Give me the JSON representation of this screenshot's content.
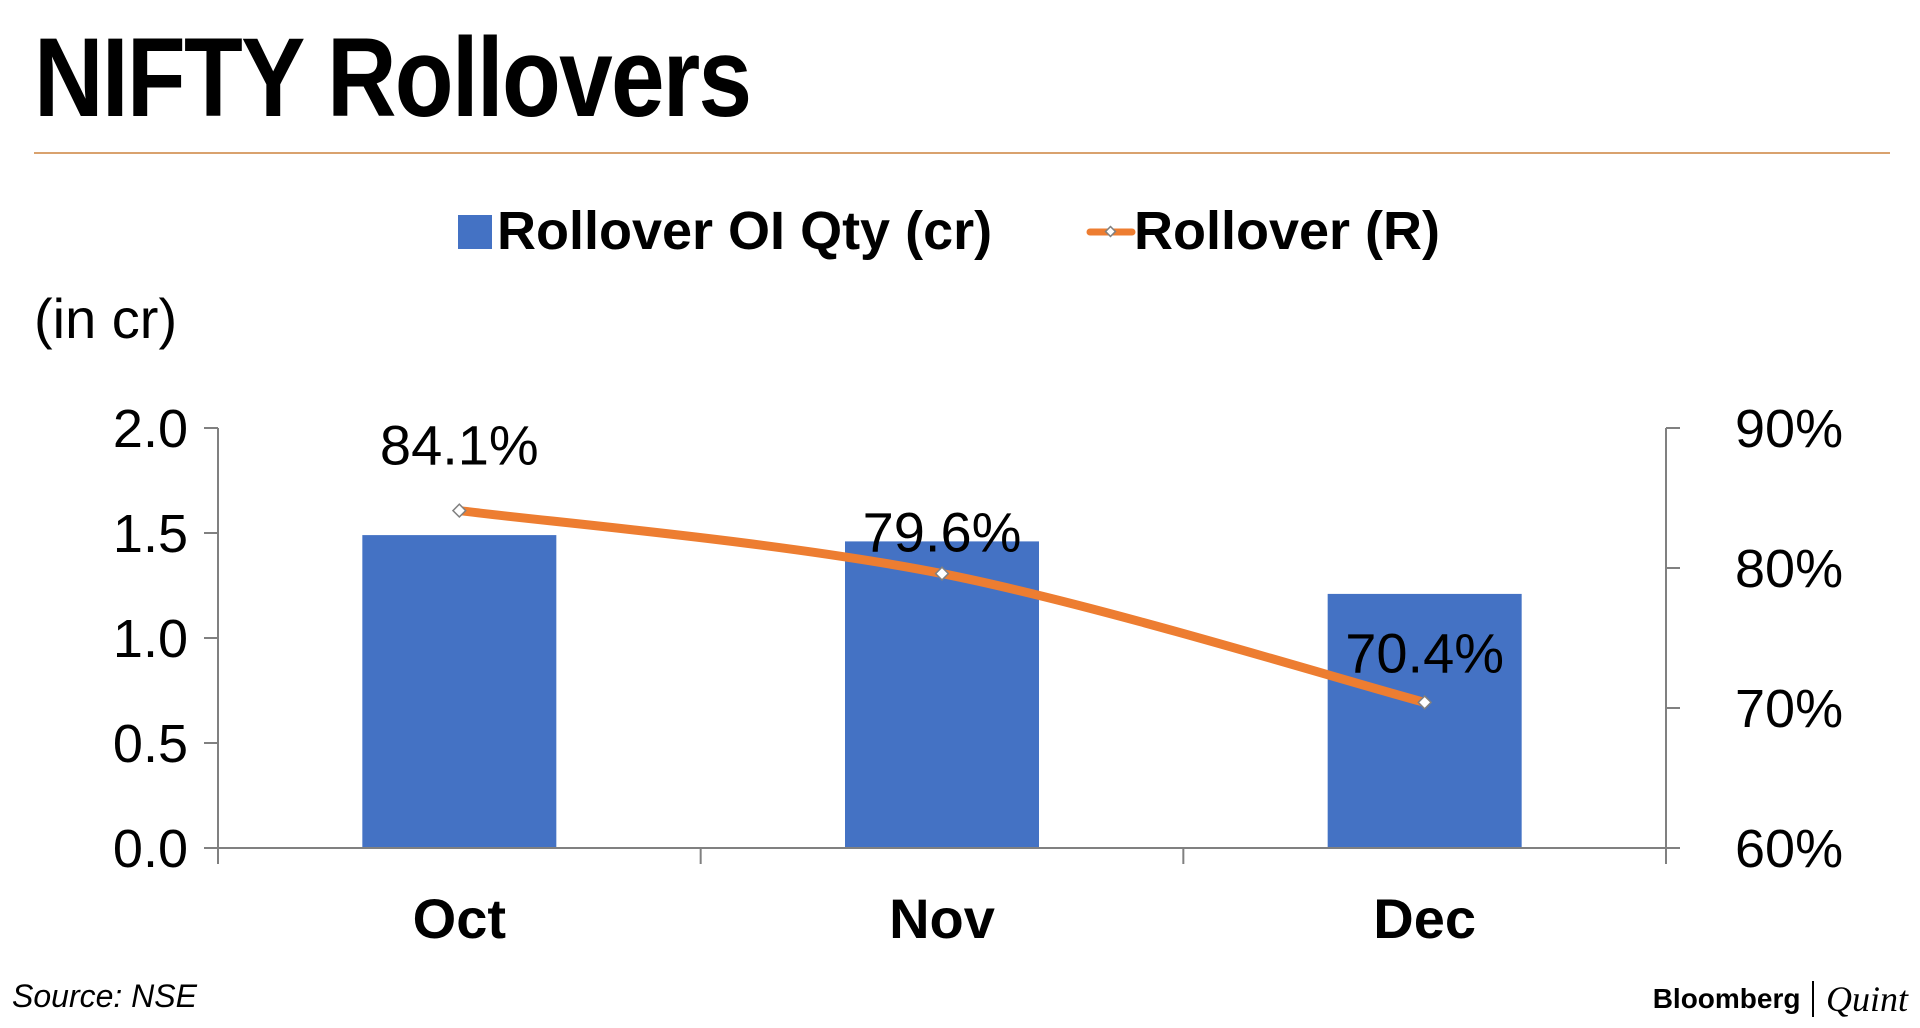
{
  "title": "NIFTY Rollovers",
  "source": "Source: NSE",
  "brand": {
    "name": "Bloomberg",
    "sub": "Quint"
  },
  "chart_data": {
    "type": "bar",
    "categories": [
      "Oct",
      "Nov",
      "Dec"
    ],
    "unit_label": "(in cr)",
    "legend_position": "top",
    "grid": false,
    "colors": {
      "bar": "#4472c4",
      "line": "#ed7d31",
      "axis": "#808080"
    },
    "left_axis": {
      "ylim": [
        0,
        2.0
      ],
      "ticks": [
        "0.0",
        "0.5",
        "1.0",
        "1.5",
        "2.0"
      ],
      "tick_values": [
        0,
        0.5,
        1.0,
        1.5,
        2.0
      ]
    },
    "right_axis": {
      "ylim": [
        0.6,
        0.9
      ],
      "ticks": [
        "60%",
        "70%",
        "80%",
        "90%"
      ],
      "tick_values": [
        0.6,
        0.7,
        0.8,
        0.9
      ]
    },
    "series": [
      {
        "name": "Rollover OI Qty (cr)",
        "type": "bar",
        "axis": "left",
        "values": [
          1.49,
          1.46,
          1.21
        ]
      },
      {
        "name": "Rollover (R)",
        "type": "line",
        "axis": "right",
        "values": [
          0.841,
          0.796,
          0.704
        ],
        "labels": [
          "84.1%",
          "79.6%",
          "70.4%"
        ]
      }
    ]
  }
}
